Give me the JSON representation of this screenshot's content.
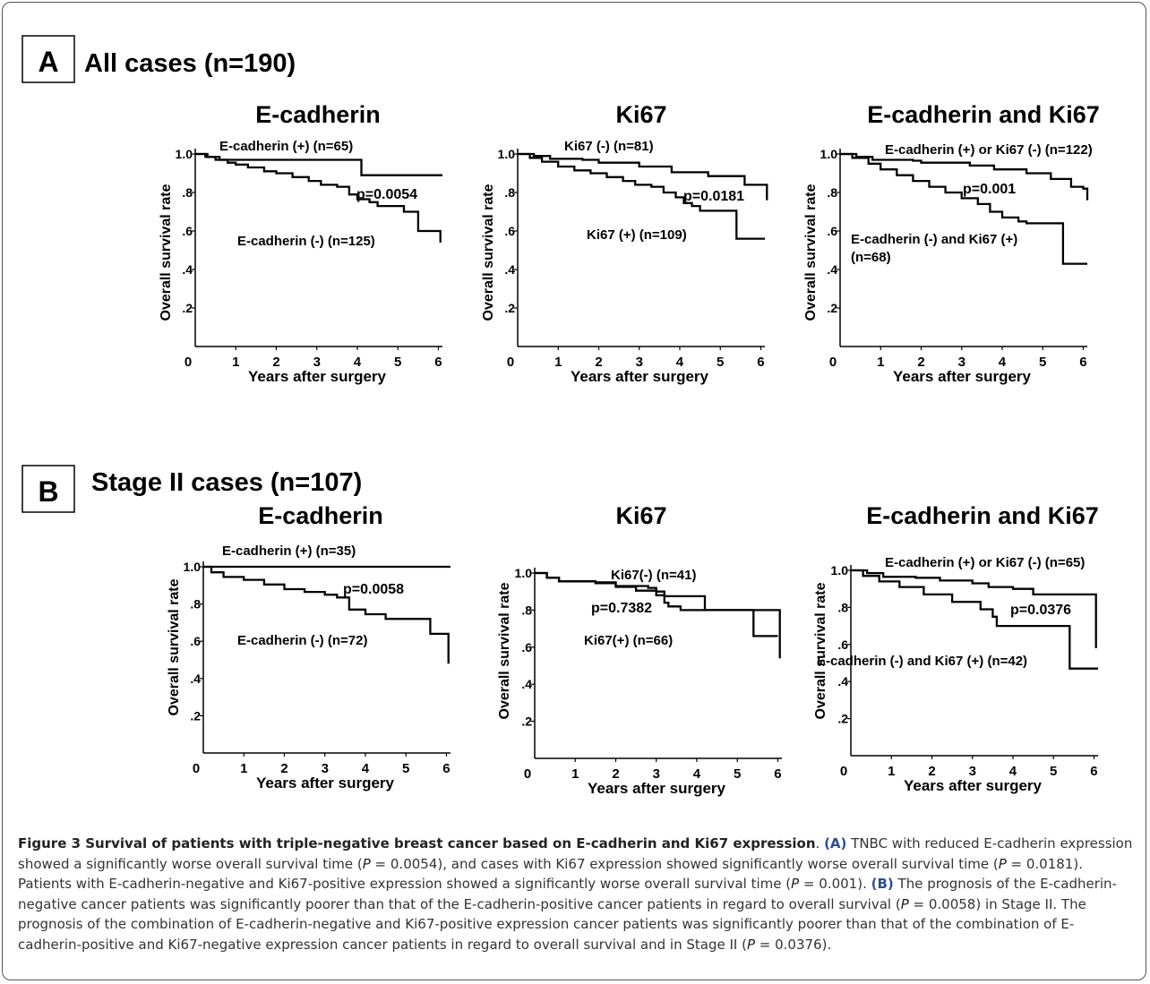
{
  "panels": [
    {
      "letter": "A",
      "title": "All cases (n=190)"
    },
    {
      "letter": "B",
      "title": "Stage II cases (n=107)"
    }
  ],
  "chart_data": [
    {
      "type": "line",
      "panel": "A",
      "title": "E-cadherin",
      "xlabel": "Years after surgery",
      "ylabel": "Overall survival rate",
      "xticks": [
        "0",
        "1",
        "2",
        "3",
        "4",
        "5",
        "6"
      ],
      "yticks": [
        "1.0",
        ".8",
        ".6",
        ".4",
        ".2"
      ],
      "xlim": [
        0,
        6.1
      ],
      "ylim": [
        0,
        1.0
      ],
      "pvalue": "p=0.0054",
      "series": [
        {
          "name": "E-cadherin (+) (n=65)",
          "points": [
            [
              0,
              1.0
            ],
            [
              0.3,
              0.985
            ],
            [
              0.6,
              0.97
            ],
            [
              4.1,
              0.97
            ],
            [
              4.1,
              0.89
            ],
            [
              6.1,
              0.89
            ]
          ]
        },
        {
          "name": "E-cadherin (-) (n=125)",
          "points": [
            [
              0,
              1.0
            ],
            [
              0.25,
              0.985
            ],
            [
              0.5,
              0.97
            ],
            [
              0.8,
              0.955
            ],
            [
              1.0,
              0.945
            ],
            [
              1.3,
              0.93
            ],
            [
              1.7,
              0.91
            ],
            [
              2.0,
              0.9
            ],
            [
              2.4,
              0.88
            ],
            [
              2.8,
              0.86
            ],
            [
              3.1,
              0.84
            ],
            [
              3.5,
              0.83
            ],
            [
              3.8,
              0.79
            ],
            [
              4.0,
              0.765
            ],
            [
              4.3,
              0.75
            ],
            [
              4.5,
              0.73
            ],
            [
              5.1,
              0.73
            ],
            [
              5.15,
              0.7
            ],
            [
              5.4,
              0.7
            ],
            [
              5.5,
              0.6
            ],
            [
              6.0,
              0.6
            ],
            [
              6.05,
              0.54
            ]
          ]
        }
      ]
    },
    {
      "type": "line",
      "panel": "A",
      "title": "Ki67",
      "xlabel": "Years after surgery",
      "ylabel": "Overall survival rate",
      "xticks": [
        "0",
        "1",
        "2",
        "3",
        "4",
        "5",
        "6"
      ],
      "yticks": [
        "1.0",
        ".8",
        ".6",
        ".4",
        ".2"
      ],
      "xlim": [
        0,
        6.1
      ],
      "ylim": [
        0,
        1.0
      ],
      "pvalue": "p=0.0181",
      "series": [
        {
          "name": "Ki67 (-) (n=81)",
          "points": [
            [
              0,
              1.0
            ],
            [
              0.4,
              0.99
            ],
            [
              0.8,
              0.975
            ],
            [
              1.6,
              0.97
            ],
            [
              2.0,
              0.955
            ],
            [
              2.8,
              0.955
            ],
            [
              3.0,
              0.935
            ],
            [
              3.6,
              0.935
            ],
            [
              3.8,
              0.905
            ],
            [
              4.6,
              0.905
            ],
            [
              4.7,
              0.885
            ],
            [
              5.5,
              0.885
            ],
            [
              5.6,
              0.84
            ],
            [
              6.1,
              0.84
            ],
            [
              6.15,
              0.76
            ]
          ]
        },
        {
          "name": "Ki67 (+) (n=109)",
          "points": [
            [
              0,
              1.0
            ],
            [
              0.3,
              0.98
            ],
            [
              0.6,
              0.96
            ],
            [
              1.0,
              0.935
            ],
            [
              1.4,
              0.915
            ],
            [
              1.8,
              0.9
            ],
            [
              2.2,
              0.88
            ],
            [
              2.6,
              0.86
            ],
            [
              2.9,
              0.84
            ],
            [
              3.3,
              0.83
            ],
            [
              3.6,
              0.8
            ],
            [
              3.9,
              0.775
            ],
            [
              4.1,
              0.745
            ],
            [
              4.3,
              0.73
            ],
            [
              4.5,
              0.705
            ],
            [
              5.3,
              0.705
            ],
            [
              5.4,
              0.56
            ],
            [
              6.1,
              0.56
            ]
          ]
        }
      ]
    },
    {
      "type": "line",
      "panel": "A",
      "title": "E-cadherin and Ki67",
      "xlabel": "Years after surgery",
      "ylabel": "Overall survival rate",
      "xticks": [
        "0",
        "1",
        "2",
        "3",
        "4",
        "5",
        "6"
      ],
      "yticks": [
        "1.0",
        ".8",
        ".6",
        ".4",
        ".2"
      ],
      "xlim": [
        0,
        6.1
      ],
      "ylim": [
        0,
        1.0
      ],
      "pvalue": "p=0.001",
      "series": [
        {
          "name": "E-cadherin (+) or Ki67 (-) (n=122)",
          "points": [
            [
              0,
              1.0
            ],
            [
              0.4,
              0.985
            ],
            [
              0.8,
              0.97
            ],
            [
              1.8,
              0.965
            ],
            [
              2.0,
              0.955
            ],
            [
              3.0,
              0.955
            ],
            [
              3.2,
              0.94
            ],
            [
              3.6,
              0.94
            ],
            [
              3.8,
              0.92
            ],
            [
              4.4,
              0.92
            ],
            [
              4.6,
              0.9
            ],
            [
              5.1,
              0.9
            ],
            [
              5.2,
              0.87
            ],
            [
              5.6,
              0.87
            ],
            [
              5.7,
              0.83
            ],
            [
              6.0,
              0.82
            ],
            [
              6.1,
              0.76
            ]
          ]
        },
        {
          "name": "E-cadherin (-) and Ki67 (+) (n=68)",
          "points": [
            [
              0,
              1.0
            ],
            [
              0.3,
              0.98
            ],
            [
              0.7,
              0.95
            ],
            [
              1.0,
              0.92
            ],
            [
              1.4,
              0.89
            ],
            [
              1.8,
              0.86
            ],
            [
              2.2,
              0.83
            ],
            [
              2.6,
              0.8
            ],
            [
              3.0,
              0.77
            ],
            [
              3.4,
              0.74
            ],
            [
              3.7,
              0.7
            ],
            [
              4.0,
              0.67
            ],
            [
              4.4,
              0.65
            ],
            [
              4.6,
              0.64
            ],
            [
              5.4,
              0.64
            ],
            [
              5.5,
              0.43
            ],
            [
              6.1,
              0.43
            ]
          ]
        }
      ]
    },
    {
      "type": "line",
      "panel": "B",
      "title": "E-cadherin",
      "xlabel": "Years after surgery",
      "ylabel": "Overall survival rate",
      "xticks": [
        "0",
        "1",
        "2",
        "3",
        "4",
        "5",
        "6"
      ],
      "yticks": [
        "1.0",
        ".8",
        ".6",
        ".4",
        ".2"
      ],
      "xlim": [
        0,
        6.1
      ],
      "ylim": [
        0,
        1.0
      ],
      "pvalue": "p=0.0058",
      "series": [
        {
          "name": "E-cadherin (+) (n=35)",
          "points": [
            [
              0,
              1.0
            ],
            [
              6.1,
              1.0
            ]
          ]
        },
        {
          "name": "E-cadherin (-) (n=72)",
          "points": [
            [
              0,
              1.0
            ],
            [
              0.2,
              0.97
            ],
            [
              0.5,
              0.945
            ],
            [
              1.0,
              0.93
            ],
            [
              1.5,
              0.905
            ],
            [
              2.0,
              0.88
            ],
            [
              2.5,
              0.865
            ],
            [
              3.0,
              0.85
            ],
            [
              3.3,
              0.835
            ],
            [
              3.6,
              0.77
            ],
            [
              4.0,
              0.745
            ],
            [
              4.5,
              0.72
            ],
            [
              5.5,
              0.72
            ],
            [
              5.6,
              0.64
            ],
            [
              6.0,
              0.64
            ],
            [
              6.05,
              0.48
            ]
          ]
        }
      ]
    },
    {
      "type": "line",
      "panel": "B",
      "title": "Ki67",
      "xlabel": "Years after surgery",
      "ylabel": "Overall survival rate",
      "xticks": [
        "0",
        "1",
        "2",
        "3",
        "4",
        "5",
        "6"
      ],
      "yticks": [
        "1.0",
        ".8",
        ".6",
        ".4",
        ".2"
      ],
      "xlim": [
        0,
        6.1
      ],
      "ylim": [
        0,
        1.0
      ],
      "pvalue": "p=0.7382",
      "series": [
        {
          "name": "Ki67(-) (n=41)",
          "points": [
            [
              0,
              1.0
            ],
            [
              0.3,
              0.975
            ],
            [
              0.6,
              0.955
            ],
            [
              1.5,
              0.95
            ],
            [
              2.0,
              0.93
            ],
            [
              2.8,
              0.92
            ],
            [
              3.0,
              0.9
            ],
            [
              3.2,
              0.875
            ],
            [
              4.1,
              0.875
            ],
            [
              4.2,
              0.8
            ],
            [
              5.6,
              0.8
            ],
            [
              6.0,
              0.8
            ],
            [
              6.05,
              0.54
            ]
          ]
        },
        {
          "name": "Ki67(+) (n=66)",
          "points": [
            [
              0,
              1.0
            ],
            [
              0.3,
              0.975
            ],
            [
              0.6,
              0.955
            ],
            [
              1.5,
              0.945
            ],
            [
              2.0,
              0.925
            ],
            [
              2.5,
              0.905
            ],
            [
              3.0,
              0.88
            ],
            [
              3.2,
              0.84
            ],
            [
              3.3,
              0.82
            ],
            [
              3.6,
              0.8
            ],
            [
              5.3,
              0.8
            ],
            [
              5.4,
              0.66
            ],
            [
              6.0,
              0.66
            ]
          ]
        }
      ]
    },
    {
      "type": "line",
      "panel": "B",
      "title": "E-cadherin and Ki67",
      "xlabel": "Years after surgery",
      "ylabel": "Overall survival rate",
      "xticks": [
        "0",
        "1",
        "2",
        "3",
        "4",
        "5",
        "6"
      ],
      "yticks": [
        "1.0",
        ".8",
        ".6",
        ".4",
        ".2"
      ],
      "xlim": [
        0,
        6.1
      ],
      "ylim": [
        0,
        1.0
      ],
      "pvalue": "p=0.0376",
      "series": [
        {
          "name": "E-cadherin (+) or Ki67 (-) (n=65)",
          "points": [
            [
              0,
              1.0
            ],
            [
              0.4,
              0.985
            ],
            [
              0.8,
              0.965
            ],
            [
              1.6,
              0.96
            ],
            [
              2.2,
              0.945
            ],
            [
              3.0,
              0.93
            ],
            [
              3.4,
              0.91
            ],
            [
              4.0,
              0.9
            ],
            [
              4.5,
              0.87
            ],
            [
              6.0,
              0.87
            ],
            [
              6.05,
              0.58
            ]
          ]
        },
        {
          "name": "E-cadherin (-) and Ki67 (+) (n=42)",
          "points": [
            [
              0,
              1.0
            ],
            [
              0.3,
              0.97
            ],
            [
              0.7,
              0.94
            ],
            [
              1.2,
              0.91
            ],
            [
              1.8,
              0.87
            ],
            [
              2.5,
              0.83
            ],
            [
              3.2,
              0.79
            ],
            [
              3.5,
              0.75
            ],
            [
              3.6,
              0.7
            ],
            [
              5.3,
              0.7
            ],
            [
              5.4,
              0.47
            ],
            [
              6.1,
              0.47
            ]
          ]
        }
      ]
    }
  ],
  "caption": {
    "label": "Figure 3 Survival of patients with triple-negative breast cancer based on E-cadherin and Ki67 expression",
    "a_ref": "(A)",
    "a_text_1": " TNBC with reduced E-cadherin expression showed a significantly worse overall survival time (",
    "a_p1": " = 0.0054), and cases with Ki67 expression showed significantly worse overall survival time (",
    "a_p2": " = 0.0181). Patients with E-cadherin-negative and Ki67-positive expression showed a significantly worse overall survival time (",
    "a_p3": " = 0.001). ",
    "b_ref": "(B)",
    "b_text_1": " The prognosis of the E-cadherin-negative cancer patients was significantly poorer than that of the E-cadherin-positive cancer patients in regard to overall survival (",
    "b_p1": " = 0.0058) in Stage II. The prognosis of the combination of E-cadherin-negative and Ki67-positive expression cancer patients was significantly poorer than that of the combination of E-cadherin-positive and Ki67-negative expression cancer patients in regard to overall survival and in Stage II (",
    "b_p2": " = 0.0376).",
    "p_symbol": "P"
  }
}
